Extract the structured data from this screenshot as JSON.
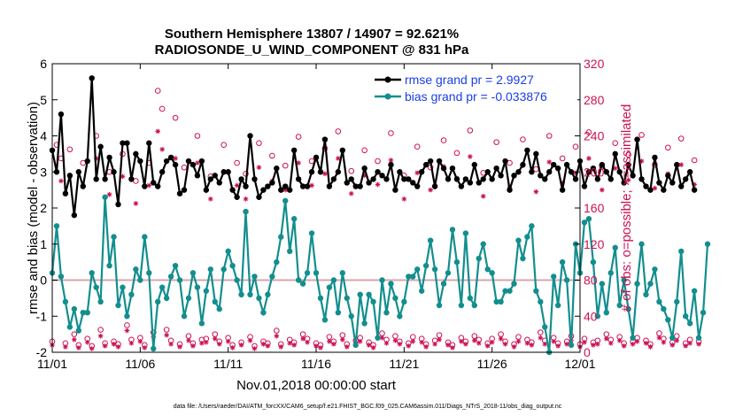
{
  "chart_data": {
    "type": "line",
    "title": "Southern Hemisphere 13807 / 14907 = 92.621%",
    "subtitle": "RADIOSONDE_U_WIND_COMPONENT @ 831 hPa",
    "xlabel": "Nov.01,2018 00:00:00 start",
    "ylabel_left": "rmse and bias (model - observation)",
    "ylabel_right": "# of obs: o=possible; ×=assimilated",
    "xlim": [
      0,
      30
    ],
    "ylim_left": [
      -2,
      6
    ],
    "ylim_right": [
      0,
      320
    ],
    "x_ticks": [
      0,
      5,
      10,
      15,
      20,
      25,
      30
    ],
    "x_tick_labels": [
      "11/01",
      "11/06",
      "11/11",
      "11/16",
      "11/21",
      "11/26",
      "12/01"
    ],
    "y_ticks_left": [
      -2,
      -1,
      0,
      1,
      2,
      3,
      4,
      5,
      6
    ],
    "y_tick_labels_left": [
      "-2",
      "-1",
      "0",
      "1",
      "2",
      "3",
      "4",
      "5",
      "6"
    ],
    "y_ticks_right": [
      0,
      40,
      80,
      120,
      160,
      200,
      240,
      280,
      320
    ],
    "y_tick_labels_right": [
      "0",
      "40",
      "80",
      "120",
      "160",
      "200",
      "240",
      "280",
      "320"
    ],
    "zero_line": 0,
    "step_days": 0.25,
    "series": [
      {
        "name": "rmse grand pr = 2.9927",
        "color": "#000000",
        "axis": "left",
        "values": [
          3.6,
          3.0,
          4.6,
          2.4,
          2.9,
          1.8,
          3.0,
          2.6,
          3.3,
          5.6,
          2.8,
          3.7,
          2.8,
          3.4,
          3.0,
          2.1,
          3.8,
          3.8,
          2.8,
          3.5,
          3.3,
          2.6,
          3.8,
          2.7,
          2.6,
          3.0,
          3.3,
          3.4,
          3.2,
          2.4,
          2.5,
          3.3,
          3.2,
          2.9,
          3.3,
          2.5,
          2.8,
          2.9,
          2.7,
          3.0,
          3.0,
          2.5,
          2.3,
          2.8,
          2.6,
          4.0,
          2.8,
          2.3,
          2.5,
          2.6,
          2.7,
          3.1,
          2.5,
          2.6,
          2.5,
          3.6,
          2.8,
          2.6,
          2.6,
          3.0,
          3.4,
          3.0,
          3.9,
          2.6,
          2.8,
          3.0,
          3.6,
          2.7,
          2.8,
          2.6,
          2.6,
          3.1,
          2.7,
          2.8,
          3.0,
          2.9,
          2.8,
          3.2,
          2.5,
          3.0,
          2.8,
          2.8,
          2.7,
          2.6,
          3.0,
          3.2,
          3.3,
          2.6,
          3.3,
          3.1,
          2.8,
          3.1,
          2.8,
          2.6,
          2.8,
          2.7,
          3.2,
          2.7,
          2.8,
          3.0,
          2.8,
          3.1,
          2.9,
          3.3,
          2.5,
          2.9,
          3.0,
          3.2,
          3.6,
          3.0,
          3.5,
          2.9,
          2.8,
          3.0,
          3.2,
          3.1,
          2.5,
          3.2,
          3.0,
          2.8,
          3.3,
          2.6,
          3.0,
          3.1,
          2.8,
          3.2,
          3.0,
          2.8,
          3.5,
          3.0,
          2.7,
          3.2,
          2.9,
          3.9,
          2.8,
          2.6,
          2.5,
          3.4,
          2.7,
          2.5,
          2.9,
          2.7,
          3.2,
          2.6,
          2.8,
          3.0,
          2.5
        ],
        "markers": "asterisk"
      },
      {
        "name": "bias grand pr = -0.033876",
        "color": "#138e8e",
        "axis": "left",
        "values": [
          0.2,
          1.5,
          0.1,
          -0.6,
          -1.3,
          -0.8,
          -1.4,
          -0.9,
          -0.9,
          0.2,
          -0.2,
          -0.6,
          2.3,
          0.4,
          1.2,
          -0.7,
          -0.2,
          -1.0,
          -0.4,
          0.3,
          0.0,
          1.2,
          0.2,
          -1.9,
          -0.6,
          -0.2,
          -0.5,
          0.1,
          0.4,
          0.0,
          -1.0,
          -0.5,
          0.2,
          -0.2,
          -1.2,
          -0.3,
          0.3,
          -0.6,
          -0.8,
          0.3,
          0.8,
          0.4,
          0.0,
          -0.4,
          1.9,
          -0.4,
          0.1,
          -0.5,
          -0.9,
          -0.4,
          0.1,
          0.5,
          1.2,
          2.2,
          0.8,
          1.7,
          0.0,
          -0.1,
          0.2,
          1.3,
          0.2,
          -0.5,
          -1.1,
          -0.2,
          0.0,
          -0.9,
          0.2,
          -0.5,
          -1.0,
          -1.8,
          -0.4,
          -1.2,
          -0.4,
          -0.6,
          -1.6,
          0.0,
          -0.9,
          -0.1,
          -0.5,
          -1.0,
          -0.6,
          0.1,
          0.1,
          0.3,
          -0.3,
          0.4,
          1.1,
          0.3,
          -0.7,
          -0.1,
          0.2,
          1.4,
          0.5,
          -0.7,
          1.3,
          -0.5,
          -0.7,
          0.6,
          1.0,
          0.3,
          0.2,
          -0.6,
          -0.6,
          -0.3,
          -0.3,
          -0.1,
          1.1,
          0.6,
          1.2,
          1.5,
          -0.3,
          -0.6,
          -1.3,
          -2.0,
          0.1,
          -0.7,
          0.5,
          0.0,
          -1.8,
          1.0,
          0.2,
          1.6,
          1.7,
          0.5,
          -1.0,
          -0.1,
          -0.9,
          0.2,
          0.9,
          -0.7,
          0.0,
          -0.8,
          -1.6,
          -0.1,
          1.0,
          -0.4,
          -0.1,
          0.3,
          -0.6,
          -0.8,
          -1.1,
          -1.6,
          -0.6,
          0.8,
          -1.0,
          -1.2,
          -0.3,
          -1.6,
          -0.9,
          1.0
        ],
        "markers": "circle"
      },
      {
        "name": "# of obs possible",
        "color": "#cc1155",
        "axis": "right",
        "marker": "circle",
        "values": [
          12,
          230,
          215,
          10,
          225,
          20,
          8,
          210,
          15,
          7,
          240,
          25,
          10,
          200,
          12,
          9,
          220,
          30,
          14,
          190,
          16,
          8,
          210,
          22,
          290,
          270,
          25,
          13,
          260,
          9,
          205,
          18,
          10,
          240,
          14,
          15,
          195,
          20,
          12,
          230,
          16,
          8,
          210,
          11,
          198,
          17,
          7,
          232,
          12,
          10,
          218,
          24,
          9,
          207,
          14,
          11,
          239,
          20,
          15,
          212,
          10,
          8,
          226,
          17,
          12,
          245,
          19,
          9,
          201,
          13,
          16,
          224,
          11,
          8,
          212,
          21,
          14,
          243,
          18,
          12,
          196,
          10,
          17,
          228,
          15,
          9,
          205,
          13,
          19,
          235,
          11,
          8,
          221,
          16,
          12,
          246,
          18,
          14,
          199,
          10,
          15,
          233,
          20,
          12,
          210,
          9,
          17,
          236,
          14,
          11,
          203,
          22,
          13,
          240,
          16,
          10,
          215,
          12,
          18,
          228,
          9,
          15,
          244,
          11,
          13,
          206,
          20,
          14,
          232,
          17,
          10,
          219,
          12,
          16,
          241,
          13,
          9,
          208,
          21,
          15,
          227,
          11,
          18,
          237,
          10,
          14,
          213,
          12
        ]
      },
      {
        "name": "# of obs assimilated",
        "color": "#cc1155",
        "axis": "right",
        "marker": "x",
        "values": [
          8,
          200,
          190,
          6,
          195,
          14,
          5,
          185,
          11,
          4,
          215,
          18,
          7,
          175,
          9,
          6,
          195,
          24,
          10,
          165,
          12,
          5,
          185,
          17,
          245,
          225,
          19,
          9,
          215,
          6,
          180,
          13,
          7,
          210,
          10,
          11,
          170,
          15,
          9,
          200,
          12,
          5,
          185,
          8,
          170,
          13,
          4,
          205,
          9,
          7,
          190,
          18,
          6,
          180,
          10,
          8,
          210,
          15,
          11,
          185,
          7,
          5,
          198,
          12,
          9,
          215,
          14,
          6,
          176,
          10,
          12,
          196,
          8,
          5,
          186,
          16,
          10,
          213,
          13,
          9,
          170,
          7,
          12,
          199,
          11,
          6,
          180,
          9,
          14,
          206,
          8,
          5,
          193,
          12,
          9,
          217,
          13,
          10,
          173,
          7,
          11,
          204,
          15,
          9,
          183,
          6,
          12,
          207,
          10,
          8,
          178,
          16,
          9,
          211,
          12,
          7,
          188,
          9,
          13,
          199,
          6,
          11,
          215,
          8,
          9,
          180,
          15,
          10,
          204,
          13,
          7,
          191,
          9,
          12,
          212,
          10,
          6,
          182,
          16,
          11,
          198,
          8,
          13,
          208,
          7,
          10,
          186,
          9
        ]
      }
    ]
  },
  "footer": "data file: /Users/raeder/DAI/ATM_forcXX/CAM6_setup/f.e21.FHIST_BGC.f09_025.CAM6assim.011/Diags_NTrS_2018-11/obs_diag_output.nc"
}
